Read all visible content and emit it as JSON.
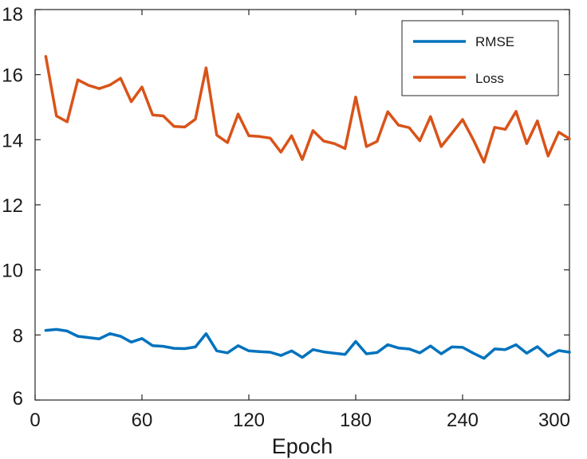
{
  "chart_data": {
    "type": "line",
    "title": "",
    "xlabel": "Epoch",
    "ylabel": "",
    "xlim": [
      0,
      300
    ],
    "ylim": [
      6,
      18
    ],
    "xticks": [
      0,
      60,
      120,
      180,
      240,
      300
    ],
    "yticks": [
      6,
      8,
      10,
      12,
      14,
      16,
      18
    ],
    "grid": false,
    "legend_position": "top-right",
    "x": [
      6,
      12,
      18,
      24,
      30,
      36,
      42,
      48,
      54,
      60,
      66,
      72,
      78,
      84,
      90,
      96,
      102,
      108,
      114,
      120,
      126,
      132,
      138,
      144,
      150,
      156,
      162,
      168,
      174,
      180,
      186,
      192,
      198,
      204,
      210,
      216,
      222,
      228,
      234,
      240,
      246,
      252,
      258,
      264,
      270,
      276,
      282,
      288,
      294,
      300
    ],
    "series": [
      {
        "name": "RMSE",
        "color": "#0072BD",
        "values": [
          8.14,
          8.17,
          8.12,
          7.96,
          7.92,
          7.88,
          8.04,
          7.96,
          7.78,
          7.89,
          7.67,
          7.65,
          7.59,
          7.58,
          7.63,
          8.04,
          7.51,
          7.45,
          7.67,
          7.51,
          7.49,
          7.47,
          7.37,
          7.51,
          7.31,
          7.55,
          7.48,
          7.44,
          7.4,
          7.8,
          7.42,
          7.46,
          7.7,
          7.6,
          7.57,
          7.45,
          7.66,
          7.42,
          7.63,
          7.62,
          7.44,
          7.28,
          7.57,
          7.55,
          7.7,
          7.44,
          7.64,
          7.35,
          7.52,
          7.47
        ]
      },
      {
        "name": "Loss",
        "color": "#D95319",
        "values": [
          16.56,
          14.73,
          14.55,
          15.84,
          15.67,
          15.57,
          15.68,
          15.89,
          15.17,
          15.62,
          14.76,
          14.73,
          14.41,
          14.39,
          14.63,
          16.21,
          14.14,
          13.91,
          14.79,
          14.12,
          14.1,
          14.05,
          13.62,
          14.12,
          13.39,
          14.28,
          13.96,
          13.88,
          13.73,
          15.31,
          13.79,
          13.95,
          14.86,
          14.45,
          14.37,
          13.97,
          14.71,
          13.79,
          14.2,
          14.62,
          14.0,
          13.31,
          14.38,
          14.32,
          14.87,
          13.88,
          14.58,
          13.5,
          14.23,
          14.03
        ]
      }
    ]
  }
}
